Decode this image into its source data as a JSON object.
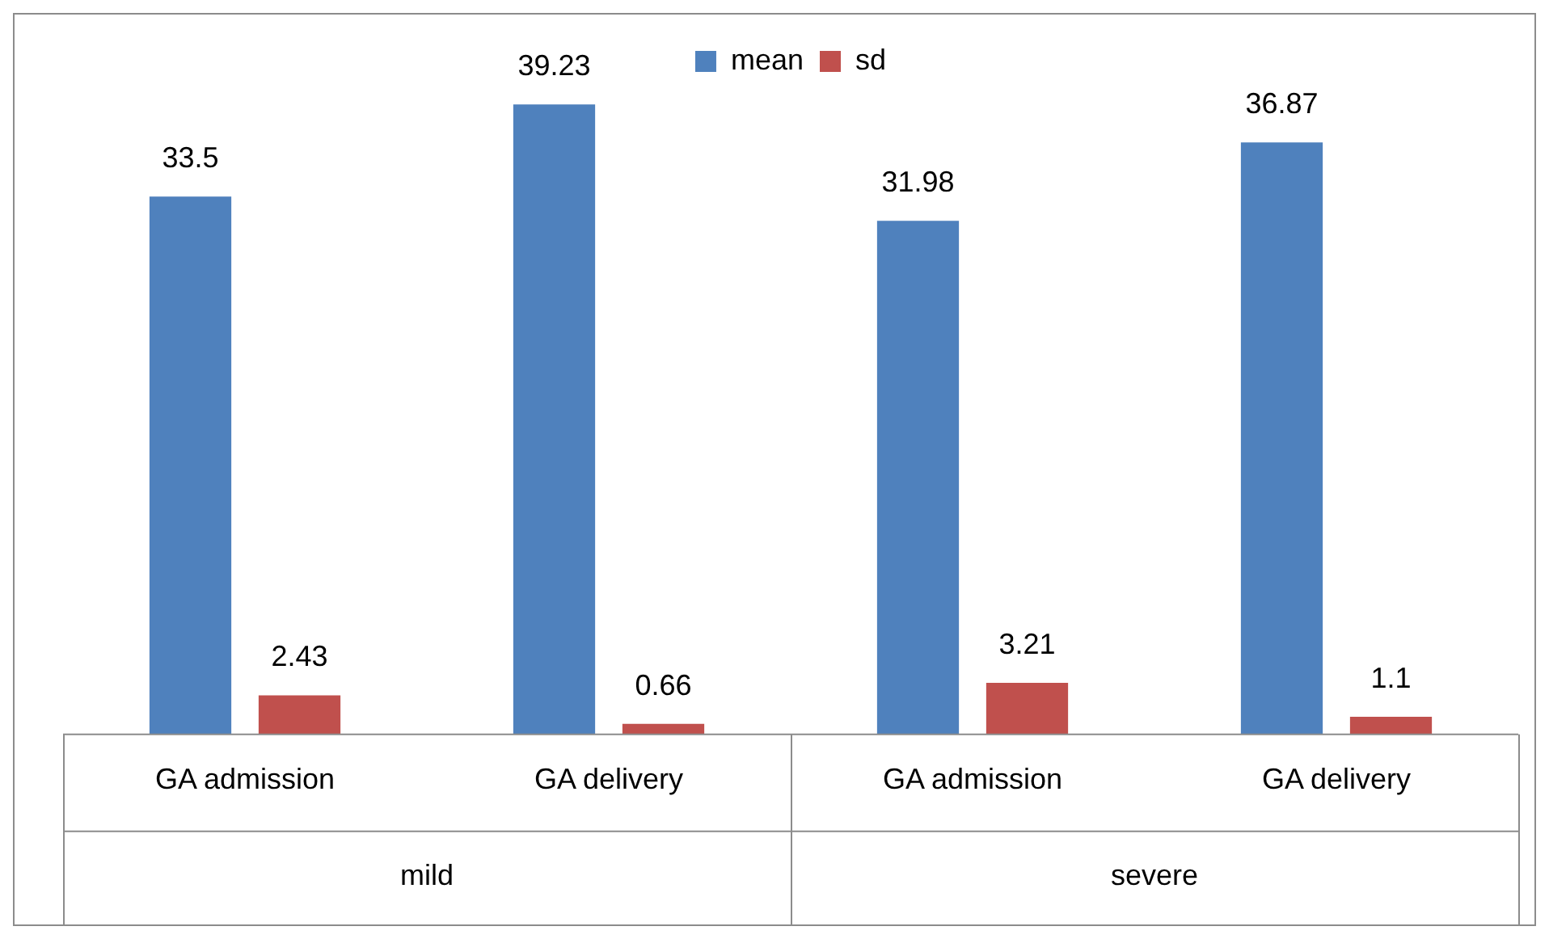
{
  "chart_data": {
    "type": "bar",
    "categories": [
      "GA admission",
      "GA delivery",
      "GA admission",
      "GA delivery"
    ],
    "series": [
      {
        "name": "mean",
        "color": "#4f81bd",
        "values": [
          33.5,
          39.23,
          31.98,
          36.87
        ]
      },
      {
        "name": "sd",
        "color": "#c0504d",
        "values": [
          2.43,
          0.66,
          3.21,
          1.1
        ]
      }
    ],
    "annotations": [
      "mild",
      "severe"
    ],
    "data_labels": true,
    "legend": "top",
    "grid": false
  }
}
